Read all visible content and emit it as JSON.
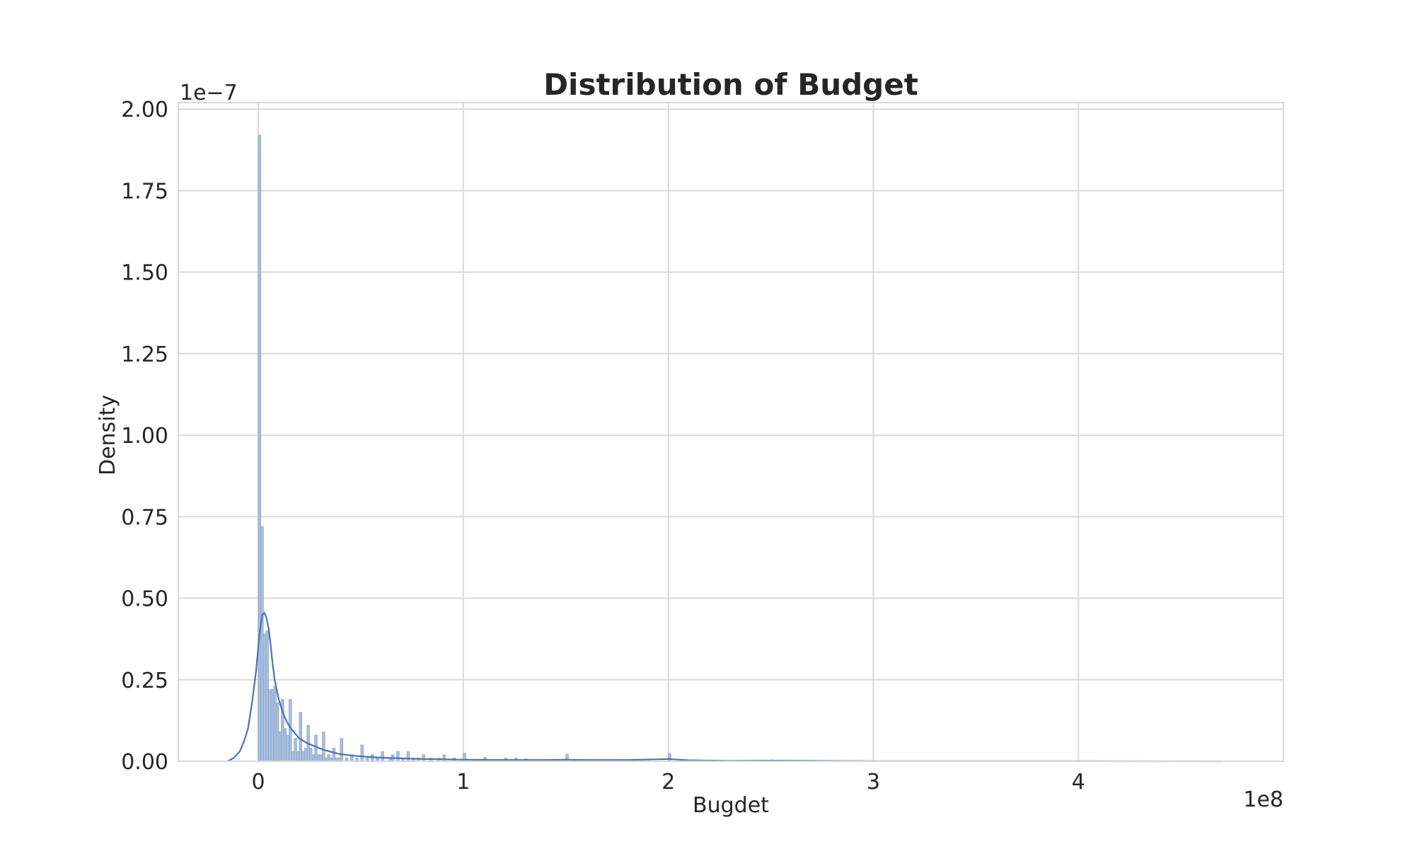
{
  "chart_data": {
    "type": "bar",
    "kind": "histogram",
    "title": "Distribution of Budget",
    "xlabel": "Bugdet",
    "ylabel": "Density",
    "x_offset_text": "1e8",
    "y_offset_text": "1e−7",
    "xlim": [
      -0.39,
      5.0
    ],
    "ylim": [
      0,
      2.02
    ],
    "grid": true,
    "x_ticks": [
      0,
      1,
      2,
      3,
      4
    ],
    "x_tick_labels": [
      "0",
      "1",
      "2",
      "3",
      "4"
    ],
    "y_ticks": [
      0,
      0.25,
      0.5,
      0.75,
      1.0,
      1.25,
      1.5,
      1.75,
      2.0
    ],
    "y_tick_labels": [
      "0.00",
      "0.25",
      "0.50",
      "0.75",
      "1.00",
      "1.25",
      "1.50",
      "1.75",
      "2.00"
    ],
    "bin_width": 0.0125,
    "bins": [
      {
        "x": 0.0,
        "y": 1.92
      },
      {
        "x": 0.0125,
        "y": 0.72
      },
      {
        "x": 0.025,
        "y": 0.39
      },
      {
        "x": 0.0375,
        "y": 0.4
      },
      {
        "x": 0.05,
        "y": 0.22
      },
      {
        "x": 0.0625,
        "y": 0.22
      },
      {
        "x": 0.075,
        "y": 0.23
      },
      {
        "x": 0.0875,
        "y": 0.18
      },
      {
        "x": 0.1,
        "y": 0.09
      },
      {
        "x": 0.1125,
        "y": 0.19
      },
      {
        "x": 0.125,
        "y": 0.1
      },
      {
        "x": 0.1375,
        "y": 0.08
      },
      {
        "x": 0.15,
        "y": 0.19
      },
      {
        "x": 0.1625,
        "y": 0.03
      },
      {
        "x": 0.175,
        "y": 0.07
      },
      {
        "x": 0.1875,
        "y": 0.03
      },
      {
        "x": 0.2,
        "y": 0.15
      },
      {
        "x": 0.2125,
        "y": 0.03
      },
      {
        "x": 0.225,
        "y": 0.04
      },
      {
        "x": 0.2375,
        "y": 0.11
      },
      {
        "x": 0.25,
        "y": 0.04
      },
      {
        "x": 0.2625,
        "y": 0.02
      },
      {
        "x": 0.275,
        "y": 0.08
      },
      {
        "x": 0.2875,
        "y": 0.02
      },
      {
        "x": 0.3,
        "y": 0.02
      },
      {
        "x": 0.3125,
        "y": 0.09
      },
      {
        "x": 0.325,
        "y": 0.01
      },
      {
        "x": 0.3375,
        "y": 0.02
      },
      {
        "x": 0.35,
        "y": 0.01
      },
      {
        "x": 0.3625,
        "y": 0.04
      },
      {
        "x": 0.375,
        "y": 0.01
      },
      {
        "x": 0.3875,
        "y": 0.01
      },
      {
        "x": 0.4,
        "y": 0.07
      },
      {
        "x": 0.425,
        "y": 0.01
      },
      {
        "x": 0.45,
        "y": 0.02
      },
      {
        "x": 0.475,
        "y": 0.01
      },
      {
        "x": 0.5,
        "y": 0.05
      },
      {
        "x": 0.525,
        "y": 0.01
      },
      {
        "x": 0.55,
        "y": 0.02
      },
      {
        "x": 0.575,
        "y": 0.01
      },
      {
        "x": 0.6,
        "y": 0.03
      },
      {
        "x": 0.6375,
        "y": 0.01
      },
      {
        "x": 0.65,
        "y": 0.02
      },
      {
        "x": 0.675,
        "y": 0.03
      },
      {
        "x": 0.7,
        "y": 0.01
      },
      {
        "x": 0.725,
        "y": 0.03
      },
      {
        "x": 0.75,
        "y": 0.01
      },
      {
        "x": 0.775,
        "y": 0.01
      },
      {
        "x": 0.8,
        "y": 0.02
      },
      {
        "x": 0.8375,
        "y": 0.01
      },
      {
        "x": 0.875,
        "y": 0.01
      },
      {
        "x": 0.9,
        "y": 0.02
      },
      {
        "x": 0.95,
        "y": 0.01
      },
      {
        "x": 1.0,
        "y": 0.025
      },
      {
        "x": 1.05,
        "y": 0.005
      },
      {
        "x": 1.1,
        "y": 0.012
      },
      {
        "x": 1.15,
        "y": 0.005
      },
      {
        "x": 1.2,
        "y": 0.01
      },
      {
        "x": 1.25,
        "y": 0.01
      },
      {
        "x": 1.3,
        "y": 0.008
      },
      {
        "x": 1.35,
        "y": 0.004
      },
      {
        "x": 1.4,
        "y": 0.004
      },
      {
        "x": 1.45,
        "y": 0.003
      },
      {
        "x": 1.5,
        "y": 0.022
      },
      {
        "x": 1.6,
        "y": 0.004
      },
      {
        "x": 1.7,
        "y": 0.004
      },
      {
        "x": 1.75,
        "y": 0.005
      },
      {
        "x": 1.8,
        "y": 0.003
      },
      {
        "x": 1.9,
        "y": 0.002
      },
      {
        "x": 2.0,
        "y": 0.024
      },
      {
        "x": 2.1,
        "y": 0.002
      },
      {
        "x": 2.25,
        "y": 0.002
      },
      {
        "x": 2.5,
        "y": 0.004
      },
      {
        "x": 3.0,
        "y": 0.001
      },
      {
        "x": 4.7,
        "y": 0.001
      }
    ],
    "kde": {
      "x": [
        -0.15,
        -0.12,
        -0.09,
        -0.07,
        -0.05,
        -0.03,
        -0.01,
        0.0,
        0.01,
        0.02,
        0.03,
        0.04,
        0.05,
        0.06,
        0.07,
        0.08,
        0.1,
        0.12,
        0.14,
        0.16,
        0.18,
        0.2,
        0.24,
        0.28,
        0.32,
        0.36,
        0.4,
        0.45,
        0.5,
        0.6,
        0.7,
        0.8,
        0.9,
        1.0,
        1.2,
        1.4,
        1.5,
        1.6,
        1.8,
        1.95,
        2.0,
        2.05,
        2.1,
        2.3,
        2.5,
        3.0,
        3.5,
        4.0,
        4.7
      ],
      "y": [
        0.0,
        0.01,
        0.03,
        0.06,
        0.1,
        0.18,
        0.28,
        0.35,
        0.41,
        0.45,
        0.455,
        0.44,
        0.41,
        0.36,
        0.3,
        0.25,
        0.19,
        0.15,
        0.12,
        0.1,
        0.085,
        0.07,
        0.055,
        0.045,
        0.035,
        0.028,
        0.022,
        0.018,
        0.015,
        0.011,
        0.009,
        0.007,
        0.006,
        0.005,
        0.004,
        0.004,
        0.005,
        0.004,
        0.004,
        0.006,
        0.007,
        0.005,
        0.003,
        0.001,
        0.002,
        0.0005,
        0.0003,
        0.0002,
        0.0
      ]
    },
    "bar_color": "#a9bedd",
    "bar_edge_color": "#8ea7cc",
    "kde_color": "#4c72b0"
  }
}
